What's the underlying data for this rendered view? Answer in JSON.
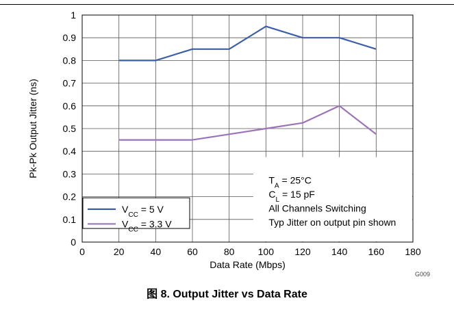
{
  "chart_data": {
    "type": "line",
    "title": "",
    "xlabel": "Data Rate (Mbps)",
    "ylabel": "Pk-Pk Output Jitter (ns)",
    "xlim": [
      0,
      180
    ],
    "ylim": [
      0,
      1
    ],
    "xticks": [
      "0",
      "20",
      "40",
      "60",
      "80",
      "100",
      "120",
      "140",
      "160",
      "180"
    ],
    "yticks": [
      "0",
      "0.1",
      "0.2",
      "0.3",
      "0.4",
      "0.5",
      "0.6",
      "0.7",
      "0.8",
      "0.9",
      "1"
    ],
    "grid": true,
    "legend_position": "bottom-left",
    "series": [
      {
        "name": "V_CC = 5 V",
        "name_main": "V",
        "name_sub": "CC",
        "name_rest": " = 5 V",
        "color": "#3a5ea8",
        "x": [
          20,
          40,
          60,
          80,
          100,
          120,
          140,
          160
        ],
        "y": [
          0.8,
          0.8,
          0.85,
          0.85,
          0.95,
          0.9,
          0.9,
          0.85
        ]
      },
      {
        "name": "V_CC = 3.3 V",
        "name_main": "V",
        "name_sub": "CC",
        "name_rest": " = 3.3 V",
        "color": "#9e72b8",
        "x": [
          20,
          40,
          60,
          80,
          100,
          120,
          140,
          160
        ],
        "y": [
          0.45,
          0.45,
          0.45,
          0.475,
          0.5,
          0.525,
          0.6,
          0.475
        ]
      }
    ],
    "annotations": [
      {
        "main": "T",
        "sub": "A",
        "rest": " = 25°C"
      },
      {
        "main": "C",
        "sub": "L",
        "rest": " = 15 pF"
      },
      {
        "main": "All Channels Switching",
        "sub": "",
        "rest": ""
      },
      {
        "main": "Typ Jitter on output pin shown",
        "sub": "",
        "rest": ""
      }
    ],
    "corner_label": "G009"
  },
  "caption": "图 8. Output Jitter vs Data Rate"
}
